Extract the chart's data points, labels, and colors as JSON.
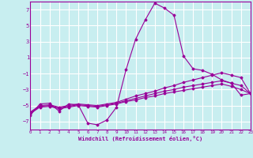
{
  "xlabel": "Windchill (Refroidissement éolien,°C)",
  "background_color": "#c8eef0",
  "grid_color": "#ffffff",
  "line_color": "#990099",
  "ylim": [
    -8,
    8
  ],
  "xlim": [
    0,
    23
  ],
  "yticks": [
    -7,
    -5,
    -3,
    -1,
    1,
    3,
    5,
    7
  ],
  "xticks": [
    0,
    1,
    2,
    3,
    4,
    5,
    6,
    7,
    8,
    9,
    10,
    11,
    12,
    13,
    14,
    15,
    16,
    17,
    18,
    19,
    20,
    21,
    22,
    23
  ],
  "series": [
    [
      -6.2,
      -4.8,
      -4.7,
      -5.7,
      -4.8,
      -4.9,
      -7.2,
      -7.4,
      -6.8,
      -5.2,
      -0.5,
      3.3,
      5.7,
      7.8,
      7.2,
      6.3,
      1.2,
      -0.4,
      -0.6,
      -1.1,
      -1.8,
      -2.2,
      -3.7,
      -3.5
    ],
    [
      -5.8,
      -5.0,
      -4.9,
      -5.2,
      -5.0,
      -4.8,
      -4.9,
      -5.0,
      -4.8,
      -4.6,
      -4.2,
      -3.8,
      -3.5,
      -3.2,
      -2.8,
      -2.5,
      -2.1,
      -1.8,
      -1.5,
      -1.2,
      -0.9,
      -1.2,
      -1.5,
      -3.5
    ],
    [
      -5.9,
      -5.1,
      -5.0,
      -5.3,
      -5.1,
      -4.9,
      -5.0,
      -5.1,
      -4.9,
      -4.7,
      -4.4,
      -4.1,
      -3.8,
      -3.5,
      -3.2,
      -3.0,
      -2.7,
      -2.5,
      -2.3,
      -2.1,
      -1.9,
      -2.2,
      -2.5,
      -3.5
    ],
    [
      -6.0,
      -5.2,
      -5.1,
      -5.4,
      -5.2,
      -5.0,
      -5.1,
      -5.2,
      -5.0,
      -4.8,
      -4.5,
      -4.3,
      -4.0,
      -3.8,
      -3.5,
      -3.3,
      -3.1,
      -2.9,
      -2.7,
      -2.5,
      -2.3,
      -2.6,
      -3.0,
      -3.5
    ]
  ]
}
